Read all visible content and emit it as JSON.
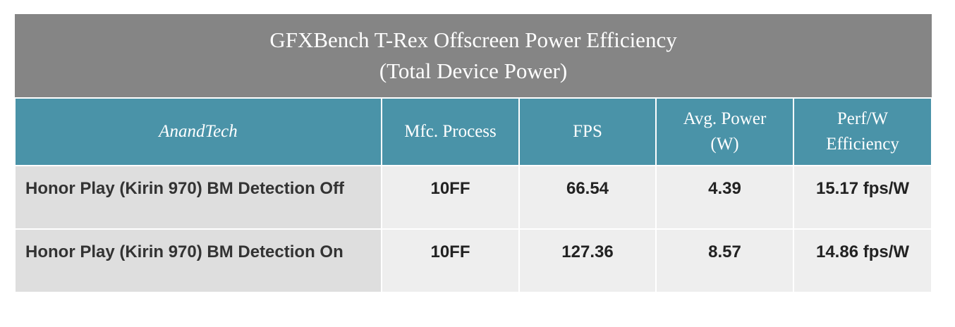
{
  "table": {
    "title": [
      "GFXBench T-Rex Offscreen Power Efficiency",
      "(Total Device Power)"
    ],
    "header": [
      "AnandTech",
      "Mfc. Process",
      "FPS",
      "Avg. Power (W)",
      "Perf/W Efficiency"
    ],
    "rows": [
      [
        "Honor Play (Kirin 970) BM Detection Off",
        "10FF",
        "66.54",
        "4.39",
        "15.17 fps/W"
      ],
      [
        "Honor Play (Kirin 970) BM Detection On",
        "10FF",
        "127.36",
        "8.57",
        "14.86 fps/W"
      ]
    ]
  }
}
